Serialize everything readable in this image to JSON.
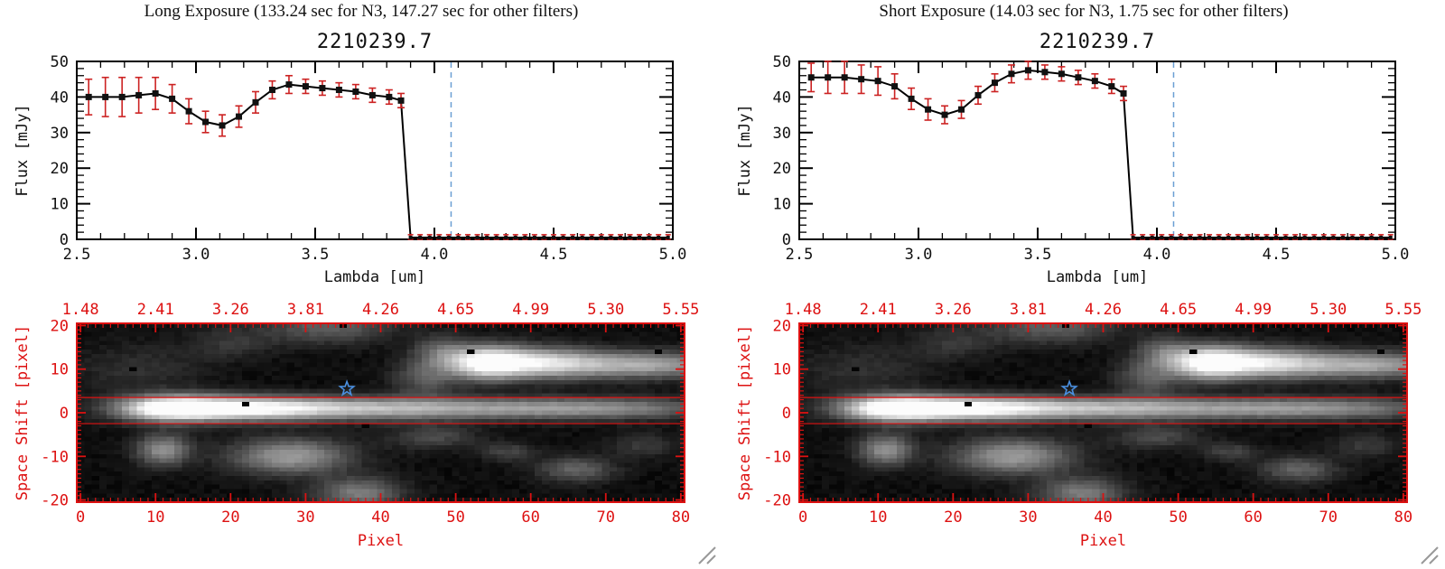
{
  "panels": [
    {
      "title": "Long Exposure (133.24 sec for N3, 147.27 sec for other filters)",
      "spectrum_chart": 0,
      "image_chart": 1
    },
    {
      "title": "Short Exposure (14.03 sec for N3, 1.75 sec for other filters)",
      "spectrum_chart": 2,
      "image_chart": 3
    }
  ],
  "chart_data": [
    {
      "id": "spectrum-long",
      "type": "line",
      "title": "2210239.7",
      "xlabel": "Lambda [um]",
      "ylabel": "Flux [mJy]",
      "xlim": [
        2.5,
        5.0
      ],
      "ylim": [
        0,
        50
      ],
      "xticks": [
        "2.5",
        "3.0",
        "3.5",
        "4.0",
        "4.5",
        "5.0"
      ],
      "yticks": [
        "0",
        "10",
        "20",
        "30",
        "40",
        "50"
      ],
      "vline_x": 4.07,
      "colors": {
        "line": "#000000",
        "marker": "#111111",
        "error": "#cc2222",
        "vline": "#6b9fd4"
      },
      "x": [
        2.55,
        2.62,
        2.69,
        2.76,
        2.83,
        2.9,
        2.97,
        3.04,
        3.11,
        3.18,
        3.25,
        3.32,
        3.39,
        3.46,
        3.53,
        3.6,
        3.67,
        3.74,
        3.81,
        3.86,
        3.9,
        3.94,
        3.98,
        4.02,
        4.06,
        4.1,
        4.14,
        4.18,
        4.22,
        4.26,
        4.3,
        4.34,
        4.38,
        4.42,
        4.46,
        4.5,
        4.54,
        4.58,
        4.62,
        4.66,
        4.7,
        4.74,
        4.78,
        4.82,
        4.86,
        4.9,
        4.94,
        4.98
      ],
      "y": [
        40,
        40,
        40,
        40.5,
        41,
        39.5,
        36,
        33,
        32,
        34.5,
        38.5,
        42,
        43.5,
        43,
        42.5,
        42,
        41.5,
        40.5,
        40,
        39,
        0.5,
        0.5,
        0.5,
        0.5,
        0.5,
        0.5,
        0.5,
        0.5,
        0.5,
        0.5,
        0.5,
        0.5,
        0.5,
        0.5,
        0.5,
        0.5,
        0.5,
        0.5,
        0.5,
        0.5,
        0.5,
        0.5,
        0.5,
        0.5,
        0.5,
        0.5,
        0.5,
        0.5
      ],
      "yerr": [
        5,
        5.5,
        5.5,
        5,
        4.5,
        4,
        3.5,
        3,
        3,
        3,
        3,
        2.5,
        2.5,
        2,
        2,
        2,
        2,
        2,
        2,
        2,
        0.8,
        0.8,
        0.8,
        0.8,
        0.8,
        0.8,
        0.8,
        0.8,
        0.8,
        0.8,
        0.8,
        0.8,
        0.8,
        0.8,
        0.8,
        0.8,
        0.8,
        0.8,
        0.8,
        0.8,
        0.8,
        0.8,
        0.8,
        0.8,
        0.8,
        0.8,
        0.8,
        0.8
      ]
    },
    {
      "id": "image-long",
      "type": "heatmap",
      "xlabel": "Pixel",
      "ylabel": "Space Shift [pixel]",
      "xlim": [
        -0.5,
        80.5
      ],
      "ylim": [
        -20.5,
        20.5
      ],
      "xticks": [
        "0",
        "10",
        "20",
        "30",
        "40",
        "50",
        "60",
        "70",
        "80"
      ],
      "yticks": [
        "20",
        "10",
        "0",
        "-10",
        "-20"
      ],
      "top_labels": [
        "1.48",
        "2.41",
        "3.26",
        "3.81",
        "4.26",
        "4.65",
        "4.99",
        "5.30",
        "5.55"
      ],
      "top_label_values": [
        0,
        10,
        20,
        30,
        40,
        50,
        60,
        70,
        80
      ],
      "frame_color": "#dd1111",
      "aperture_lines_y": [
        3.5,
        -2.5
      ],
      "star": {
        "x": 35.5,
        "y": 5.5,
        "color": "#4a8fe0"
      },
      "grid": {
        "width": 81,
        "height": 41
      },
      "blobs": [
        {
          "x": 12,
          "y": 1,
          "sx": 5,
          "sy": 2.0,
          "a": 1.05
        },
        {
          "x": 22,
          "y": 1,
          "sx": 7,
          "sy": 1.9,
          "a": 0.8
        },
        {
          "x": 36,
          "y": 1,
          "sx": 10,
          "sy": 1.8,
          "a": 0.55
        },
        {
          "x": 55,
          "y": 1,
          "sx": 12,
          "sy": 1.7,
          "a": 0.42
        },
        {
          "x": 72,
          "y": 1,
          "sx": 10,
          "sy": 1.7,
          "a": 0.34
        },
        {
          "x": 48,
          "y": 14,
          "sx": 2.5,
          "sy": 2.5,
          "a": 0.3
        },
        {
          "x": 54,
          "y": 11.5,
          "sx": 3.5,
          "sy": 2.6,
          "a": 0.95
        },
        {
          "x": 61,
          "y": 11.5,
          "sx": 5,
          "sy": 2.4,
          "a": 0.65
        },
        {
          "x": 70,
          "y": 11,
          "sx": 7,
          "sy": 2.2,
          "a": 0.45
        },
        {
          "x": 79,
          "y": 11,
          "sx": 6,
          "sy": 2.0,
          "a": 0.35
        },
        {
          "x": 11,
          "y": -8.5,
          "sx": 2.5,
          "sy": 2.5,
          "a": 0.5
        },
        {
          "x": 28,
          "y": -10,
          "sx": 5.5,
          "sy": 2.8,
          "a": 0.55
        },
        {
          "x": 37,
          "y": -18.5,
          "sx": 4,
          "sy": 2.5,
          "a": 0.42
        },
        {
          "x": 47,
          "y": -5.5,
          "sx": 4,
          "sy": 2.0,
          "a": 0.22
        },
        {
          "x": 57,
          "y": -9,
          "sx": 2.5,
          "sy": 1.5,
          "a": 0.2
        },
        {
          "x": 66,
          "y": -13,
          "sx": 3.5,
          "sy": 2.0,
          "a": 0.32
        },
        {
          "x": 75,
          "y": -7.5,
          "sx": 3,
          "sy": 2.0,
          "a": 0.16
        },
        {
          "x": 33,
          "y": 19.5,
          "sx": 6,
          "sy": 2.5,
          "a": 0.3
        },
        {
          "x": 20,
          "y": 16,
          "sx": 4,
          "sy": 2.5,
          "a": 0.14
        },
        {
          "x": 8,
          "y": 10,
          "sx": 6,
          "sy": 4,
          "a": 0.12
        },
        {
          "x": 46,
          "y": 8,
          "sx": 3,
          "sy": 3,
          "a": 0.28
        }
      ],
      "dark_spots": [
        [
          22,
          2
        ],
        [
          38,
          -3
        ],
        [
          52,
          14
        ],
        [
          77,
          14
        ],
        [
          7,
          10
        ],
        [
          35,
          20
        ]
      ]
    },
    {
      "id": "spectrum-short",
      "type": "line",
      "title": "2210239.7",
      "xlabel": "Lambda [um]",
      "ylabel": "Flux [mJy]",
      "xlim": [
        2.5,
        5.0
      ],
      "ylim": [
        0,
        50
      ],
      "xticks": [
        "2.5",
        "3.0",
        "3.5",
        "4.0",
        "4.5",
        "5.0"
      ],
      "yticks": [
        "0",
        "10",
        "20",
        "30",
        "40",
        "50"
      ],
      "vline_x": 4.07,
      "colors": {
        "line": "#000000",
        "marker": "#111111",
        "error": "#cc2222",
        "vline": "#6b9fd4"
      },
      "x": [
        2.55,
        2.62,
        2.69,
        2.76,
        2.83,
        2.9,
        2.97,
        3.04,
        3.11,
        3.18,
        3.25,
        3.32,
        3.39,
        3.46,
        3.53,
        3.6,
        3.67,
        3.74,
        3.81,
        3.86,
        3.9,
        3.94,
        3.98,
        4.02,
        4.06,
        4.1,
        4.14,
        4.18,
        4.22,
        4.26,
        4.3,
        4.34,
        4.38,
        4.42,
        4.46,
        4.5,
        4.54,
        4.58,
        4.62,
        4.66,
        4.7,
        4.74,
        4.78,
        4.82,
        4.86,
        4.9,
        4.94,
        4.98
      ],
      "y": [
        45.5,
        45.5,
        45.5,
        45,
        44.5,
        43,
        39.5,
        36.5,
        35,
        36.5,
        40.5,
        44,
        46.5,
        47.5,
        47,
        46.5,
        45.5,
        44.5,
        43,
        41,
        0.5,
        0.5,
        0.5,
        0.5,
        0.5,
        0.5,
        0.5,
        0.5,
        0.5,
        0.5,
        0.5,
        0.5,
        0.5,
        0.5,
        0.5,
        0.5,
        0.5,
        0.5,
        0.5,
        0.5,
        0.5,
        0.5,
        0.5,
        0.5,
        0.5,
        0.5,
        0.5,
        0.5
      ],
      "yerr": [
        4,
        4.5,
        4.5,
        4,
        4,
        3.5,
        3,
        3,
        2.5,
        2.5,
        2.5,
        2.5,
        2.5,
        2.5,
        2,
        2,
        2,
        2,
        2,
        2,
        0.8,
        0.8,
        0.8,
        0.8,
        0.8,
        0.8,
        0.8,
        0.8,
        0.8,
        0.8,
        0.8,
        0.8,
        0.8,
        0.8,
        0.8,
        0.8,
        0.8,
        0.8,
        0.8,
        0.8,
        0.8,
        0.8,
        0.8,
        0.8,
        0.8,
        0.8,
        0.8,
        0.8
      ]
    },
    {
      "id": "image-short",
      "type": "heatmap",
      "xlabel": "Pixel",
      "ylabel": "Space Shift [pixel]",
      "xlim": [
        -0.5,
        80.5
      ],
      "ylim": [
        -20.5,
        20.5
      ],
      "xticks": [
        "0",
        "10",
        "20",
        "30",
        "40",
        "50",
        "60",
        "70",
        "80"
      ],
      "yticks": [
        "20",
        "10",
        "0",
        "-10",
        "-20"
      ],
      "top_labels": [
        "1.48",
        "2.41",
        "3.26",
        "3.81",
        "4.26",
        "4.65",
        "4.99",
        "5.30",
        "5.55"
      ],
      "top_label_values": [
        0,
        10,
        20,
        30,
        40,
        50,
        60,
        70,
        80
      ],
      "frame_color": "#dd1111",
      "aperture_lines_y": [
        3.5,
        -2.5
      ],
      "star": {
        "x": 35.5,
        "y": 5.5,
        "color": "#4a8fe0"
      },
      "grid": {
        "width": 81,
        "height": 41
      },
      "blobs": [
        {
          "x": 12,
          "y": 1,
          "sx": 5,
          "sy": 2.0,
          "a": 1.05
        },
        {
          "x": 22,
          "y": 1,
          "sx": 7,
          "sy": 1.9,
          "a": 0.8
        },
        {
          "x": 36,
          "y": 1,
          "sx": 10,
          "sy": 1.8,
          "a": 0.55
        },
        {
          "x": 55,
          "y": 1,
          "sx": 12,
          "sy": 1.7,
          "a": 0.42
        },
        {
          "x": 72,
          "y": 1,
          "sx": 10,
          "sy": 1.7,
          "a": 0.34
        },
        {
          "x": 48,
          "y": 14,
          "sx": 2.5,
          "sy": 2.5,
          "a": 0.3
        },
        {
          "x": 54,
          "y": 11.5,
          "sx": 3.5,
          "sy": 2.6,
          "a": 0.95
        },
        {
          "x": 61,
          "y": 11.5,
          "sx": 5,
          "sy": 2.4,
          "a": 0.65
        },
        {
          "x": 70,
          "y": 11,
          "sx": 7,
          "sy": 2.2,
          "a": 0.45
        },
        {
          "x": 79,
          "y": 11,
          "sx": 6,
          "sy": 2.0,
          "a": 0.35
        },
        {
          "x": 11,
          "y": -8.5,
          "sx": 2.5,
          "sy": 2.5,
          "a": 0.5
        },
        {
          "x": 28,
          "y": -10,
          "sx": 5.5,
          "sy": 2.8,
          "a": 0.55
        },
        {
          "x": 37,
          "y": -18.5,
          "sx": 4,
          "sy": 2.5,
          "a": 0.42
        },
        {
          "x": 47,
          "y": -5.5,
          "sx": 4,
          "sy": 2.0,
          "a": 0.22
        },
        {
          "x": 57,
          "y": -9,
          "sx": 2.5,
          "sy": 1.5,
          "a": 0.2
        },
        {
          "x": 66,
          "y": -13,
          "sx": 3.5,
          "sy": 2.0,
          "a": 0.32
        },
        {
          "x": 75,
          "y": -7.5,
          "sx": 3,
          "sy": 2.0,
          "a": 0.16
        },
        {
          "x": 33,
          "y": 19.5,
          "sx": 6,
          "sy": 2.5,
          "a": 0.3
        },
        {
          "x": 20,
          "y": 16,
          "sx": 4,
          "sy": 2.5,
          "a": 0.14
        },
        {
          "x": 8,
          "y": 10,
          "sx": 6,
          "sy": 4,
          "a": 0.12
        },
        {
          "x": 46,
          "y": 8,
          "sx": 3,
          "sy": 3,
          "a": 0.28
        }
      ],
      "dark_spots": [
        [
          22,
          2
        ],
        [
          38,
          -3
        ],
        [
          52,
          14
        ],
        [
          77,
          14
        ],
        [
          7,
          10
        ],
        [
          35,
          20
        ]
      ]
    }
  ]
}
